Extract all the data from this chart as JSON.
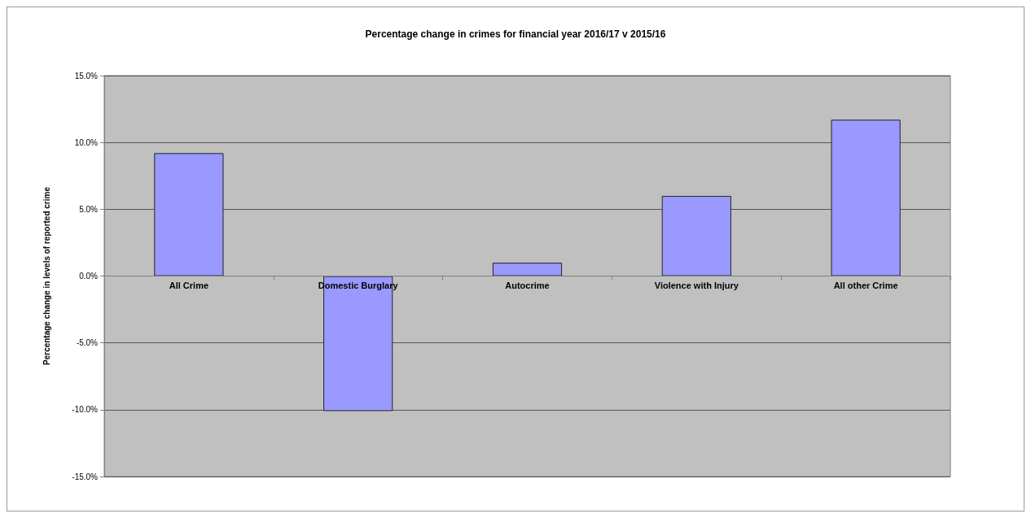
{
  "chart_data": {
    "type": "bar",
    "title": "Percentage change in crimes for financial year 2016/17 v 2015/16",
    "ylabel": "Percentage change in levels of reported crime",
    "categories": [
      "All Crime",
      "Domestic Burglary",
      "Autocrime",
      "Violence with Injury",
      "All other Crime"
    ],
    "values": [
      9.2,
      -10.1,
      1.0,
      6.0,
      11.7
    ],
    "color": "#9999ff",
    "ylim": [
      -15,
      15
    ],
    "yticks": [
      {
        "value": -15,
        "label": "-15.0%"
      },
      {
        "value": -10,
        "label": "-10.0%"
      },
      {
        "value": -5,
        "label": "-5.0%"
      },
      {
        "value": 0,
        "label": "0.0%"
      },
      {
        "value": 5,
        "label": "5.0%"
      },
      {
        "value": 10,
        "label": "10.0%"
      },
      {
        "value": 15,
        "label": "15.0%"
      }
    ],
    "grid": "y"
  }
}
